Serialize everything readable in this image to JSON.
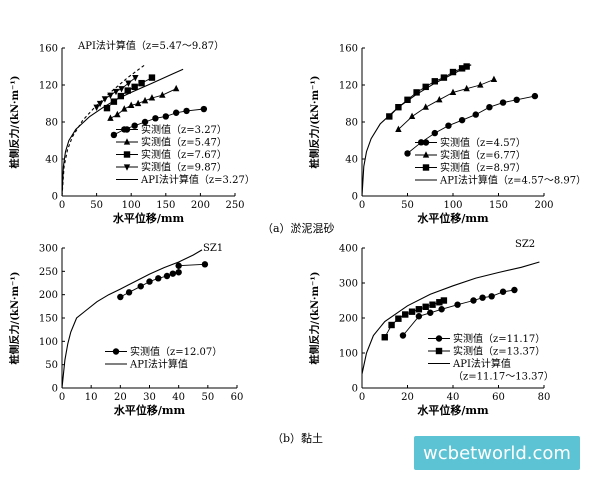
{
  "chart_data": [
    {
      "type": "line",
      "panel": "a-left",
      "xlabel": "水平位移/mm",
      "ylabel": "桩侧反力/(kN·m⁻¹)",
      "xlim": [
        0,
        250
      ],
      "ylim": [
        0,
        160
      ],
      "xticks": [
        0,
        50,
        100,
        150,
        200,
        250
      ],
      "yticks": [
        0,
        40,
        80,
        120,
        160
      ],
      "annotation": "API法计算值（z=5.47～9.87）",
      "legend": [
        {
          "label": "实测值（z=3.27）",
          "marker": "circle",
          "style": "marker"
        },
        {
          "label": "实测值（z=5.47）",
          "marker": "triangle",
          "style": "marker"
        },
        {
          "label": "实测值（z=7.67）",
          "marker": "square",
          "style": "marker"
        },
        {
          "label": "实测值（z=9.87）",
          "marker": "triangle-down",
          "style": "marker"
        },
        {
          "label": "API法计算值（z=3.27）",
          "marker": "none",
          "style": "solid"
        }
      ],
      "series": [
        {
          "name": "实测值（z=3.27）",
          "marker": "circle",
          "x": [
            75,
            90,
            105,
            120,
            135,
            150,
            165,
            180,
            205
          ],
          "y": [
            66,
            72,
            76,
            80,
            84,
            86,
            90,
            92,
            94
          ]
        },
        {
          "name": "实测值（z=5.47）",
          "marker": "triangle",
          "x": [
            70,
            80,
            90,
            100,
            110,
            120,
            130,
            145,
            165
          ],
          "y": [
            84,
            88,
            94,
            98,
            100,
            103,
            106,
            109,
            116
          ]
        },
        {
          "name": "实测值（z=7.67）",
          "marker": "square",
          "x": [
            65,
            75,
            85,
            95,
            105,
            115,
            130
          ],
          "y": [
            95,
            102,
            108,
            114,
            118,
            122,
            128
          ]
        },
        {
          "name": "实测值（z=9.87）",
          "marker": "triangle-down",
          "x": [
            50,
            55,
            62,
            70,
            78,
            86,
            96,
            106
          ],
          "y": [
            96,
            100,
            105,
            109,
            113,
            116,
            122,
            128
          ]
        },
        {
          "name": "API法计算值（z=3.27）",
          "style": "solid",
          "x": [
            0,
            2,
            5,
            10,
            20,
            40,
            60,
            80,
            100,
            130,
            160,
            175
          ],
          "y": [
            0,
            32,
            48,
            60,
            72,
            86,
            96,
            105,
            112,
            122,
            132,
            137
          ]
        },
        {
          "name": "API法计算值（z=5.47～9.87）",
          "style": "dashed",
          "x": [
            0,
            3,
            8,
            15,
            30,
            50,
            70,
            95,
            120
          ],
          "y": [
            0,
            32,
            50,
            64,
            82,
            98,
            112,
            128,
            142
          ]
        }
      ]
    },
    {
      "type": "line",
      "panel": "a-right",
      "xlabel": "水平位移/mm",
      "ylabel": "桩侧反力/(kN·m⁻¹)",
      "xlim": [
        0,
        200
      ],
      "ylim": [
        0,
        160
      ],
      "xticks": [
        0,
        50,
        100,
        150,
        200
      ],
      "yticks": [
        0,
        40,
        80,
        120,
        160
      ],
      "legend": [
        {
          "label": "实测值（z=4.57）",
          "marker": "circle",
          "style": "marker"
        },
        {
          "label": "实测值（z=6.77）",
          "marker": "triangle",
          "style": "marker"
        },
        {
          "label": "实测值（z=8.97）",
          "marker": "square",
          "style": "marker"
        },
        {
          "label": "API法计算值（z=4.57～8.97）",
          "marker": "none",
          "style": "solid"
        }
      ],
      "series": [
        {
          "name": "实测值（z=4.57）",
          "marker": "circle",
          "x": [
            50,
            65,
            80,
            95,
            110,
            125,
            140,
            155,
            170,
            190
          ],
          "y": [
            46,
            58,
            68,
            76,
            82,
            88,
            96,
            101,
            104,
            108
          ]
        },
        {
          "name": "实测值（z=6.77）",
          "marker": "triangle",
          "x": [
            40,
            55,
            70,
            85,
            100,
            115,
            130,
            145
          ],
          "y": [
            72,
            86,
            96,
            104,
            112,
            116,
            120,
            126
          ]
        },
        {
          "name": "实测值（z=8.97）",
          "marker": "square",
          "x": [
            30,
            40,
            50,
            60,
            70,
            80,
            90,
            100,
            110,
            115
          ],
          "y": [
            86,
            96,
            104,
            112,
            118,
            124,
            128,
            134,
            138,
            140
          ]
        },
        {
          "name": "API法计算值（z=4.57～8.97）",
          "style": "solid",
          "x": [
            0,
            2,
            5,
            10,
            20,
            40,
            60,
            80,
            100,
            120
          ],
          "y": [
            0,
            32,
            48,
            62,
            78,
            96,
            110,
            122,
            132,
            142
          ]
        }
      ]
    },
    {
      "type": "line",
      "panel": "b-left",
      "tag": "SZ1",
      "xlabel": "水平位移/mm",
      "ylabel": "桩侧反力/(kN·m⁻¹)",
      "xlim": [
        0,
        60
      ],
      "ylim": [
        0,
        300
      ],
      "xticks": [
        0,
        10,
        20,
        30,
        40,
        50,
        60
      ],
      "yticks": [
        0,
        50,
        100,
        150,
        200,
        250,
        300
      ],
      "legend": [
        {
          "label": "实测值（z=12.07）",
          "marker": "circle",
          "style": "marker"
        },
        {
          "label": "API法计算值",
          "marker": "none",
          "style": "solid"
        }
      ],
      "series": [
        {
          "name": "实测值（z=12.07）",
          "marker": "circle",
          "x": [
            20,
            23,
            27,
            30,
            33,
            36,
            38,
            40,
            40,
            49
          ],
          "y": [
            195,
            205,
            218,
            228,
            235,
            240,
            245,
            248,
            262,
            265
          ]
        },
        {
          "name": "API法计算值",
          "style": "solid",
          "x": [
            0,
            1,
            2,
            3,
            5,
            8,
            12,
            16,
            20,
            25,
            30,
            35,
            40,
            45,
            48
          ],
          "y": [
            0,
            60,
            95,
            120,
            150,
            165,
            185,
            200,
            212,
            228,
            244,
            258,
            270,
            285,
            296
          ]
        }
      ]
    },
    {
      "type": "line",
      "panel": "b-right",
      "tag": "SZ2",
      "xlabel": "水平位移/mm",
      "ylabel": "桩侧反力/(kN·m⁻¹)",
      "xlim": [
        0,
        80
      ],
      "ylim": [
        0,
        400
      ],
      "xticks": [
        0,
        20,
        40,
        60,
        80
      ],
      "yticks": [
        0,
        100,
        200,
        300,
        400
      ],
      "legend": [
        {
          "label": "实测值（z=11.17）",
          "marker": "circle",
          "style": "marker"
        },
        {
          "label": "实测值（z=13.37）",
          "marker": "square",
          "style": "marker"
        },
        {
          "label": "API法计算值",
          "marker": "none",
          "style": "solid"
        },
        {
          "label": "（z=11.17～13.37）",
          "marker": "none",
          "style": "text"
        }
      ],
      "series": [
        {
          "name": "实测值（z=11.17）",
          "marker": "circle",
          "x": [
            18,
            25,
            30,
            35,
            42,
            49,
            53,
            57,
            62,
            67
          ],
          "y": [
            150,
            205,
            215,
            225,
            238,
            250,
            258,
            262,
            275,
            280
          ]
        },
        {
          "name": "实测值（z=13.37）",
          "marker": "square",
          "x": [
            10,
            13,
            16,
            19,
            22,
            25,
            28,
            31,
            34,
            36
          ],
          "y": [
            145,
            180,
            198,
            210,
            218,
            225,
            232,
            238,
            245,
            250
          ]
        },
        {
          "name": "API法计算值",
          "style": "solid",
          "x": [
            0,
            2,
            5,
            10,
            20,
            30,
            40,
            50,
            60,
            70,
            78
          ],
          "y": [
            40,
            100,
            150,
            190,
            235,
            268,
            292,
            314,
            330,
            345,
            360
          ]
        }
      ]
    }
  ],
  "captions": {
    "a": "（a）淤泥混砂",
    "b": "（b）黏土"
  },
  "watermark": "wcbetworld.com"
}
